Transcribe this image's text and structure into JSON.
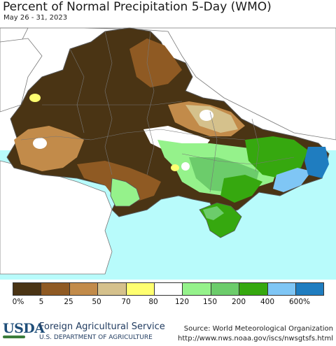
{
  "header": {
    "title": "Percent of Normal Precipitation 5-Day (WMO)",
    "dates": "May 26 - 31, 2023"
  },
  "legend": {
    "colors": [
      "#4a3414",
      "#8f5a23",
      "#c28b4a",
      "#d5c18c",
      "#ffff70",
      "#ffffff",
      "#95f28b",
      "#6ccc6b",
      "#36a80f",
      "#7fc6f5",
      "#1f7dc0"
    ],
    "ticks": [
      "0%",
      "5",
      "25",
      "50",
      "70",
      "80",
      "120",
      "150",
      "200",
      "400",
      "600%"
    ]
  },
  "map": {
    "sea_color": "#b8fbfb",
    "land_outside_color": "#ffffff",
    "border_color": "#666666"
  },
  "footer": {
    "logo": "USDA",
    "agency": "Foreign Agricultural Service",
    "department": "U.S. DEPARTMENT OF AGRICULTURE",
    "source": "Source: World Meteorological Organization",
    "url": "http://www.nws.noaa.gov/iscs/nwsgtsfs.html"
  }
}
